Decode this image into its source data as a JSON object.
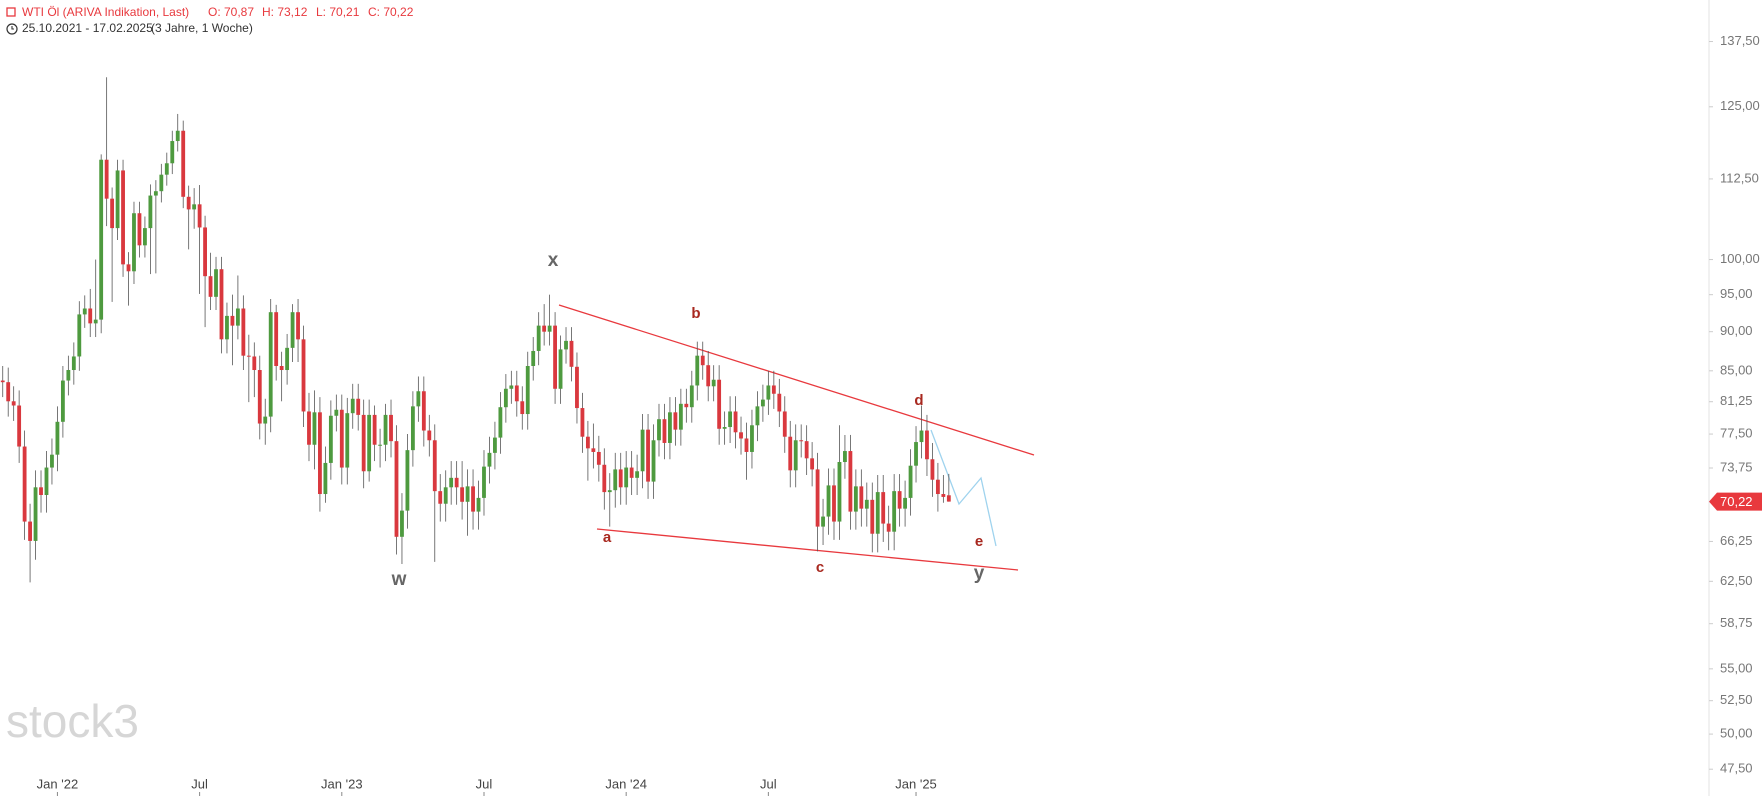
{
  "chart_data": {
    "type": "candlestick",
    "title": "WTI Öl (ARIVA Indikation, Last)",
    "ohlc_labels": [
      "O: 70,87",
      "H: 73,12",
      "L: 70,21",
      "C: 70,22"
    ],
    "subtitle": "25.10.2021 - 17.02.2025",
    "period": "(3 Jahre, 1 Woche)",
    "watermark": "stock3",
    "wave_labels": [
      "x",
      "w",
      "y",
      "a",
      "b",
      "c",
      "d",
      "e"
    ],
    "up_color": "#4e9a3f",
    "down_color": "#d9383e",
    "log_scale": true,
    "ylim": [
      47.1,
      146.1
    ],
    "yticks": [
      {
        "value": 137.5,
        "label": "137,50"
      },
      {
        "value": 125,
        "label": "125,00"
      },
      {
        "value": 112.5,
        "label": "112,50"
      },
      {
        "value": 100,
        "label": "100,00"
      },
      {
        "value": 95,
        "label": "95,00"
      },
      {
        "value": 90,
        "label": "90,00"
      },
      {
        "value": 85,
        "label": "85,00"
      },
      {
        "value": 81.25,
        "label": "81,25"
      },
      {
        "value": 77.5,
        "label": "77,50"
      },
      {
        "value": 73.75,
        "label": "73,75"
      },
      {
        "value": 66.25,
        "label": "66,25"
      },
      {
        "value": 62.5,
        "label": "62,50"
      },
      {
        "value": 58.75,
        "label": "58,75"
      },
      {
        "value": 55,
        "label": "55,00"
      },
      {
        "value": 52.5,
        "label": "52,50"
      },
      {
        "value": 50,
        "label": "50,00"
      },
      {
        "value": 47.5,
        "label": "47,50"
      }
    ],
    "xlim": [
      -0.5,
      312
    ],
    "xticks": [
      {
        "value": 10,
        "label": "Jan '22"
      },
      {
        "value": 36,
        "label": "Jul"
      },
      {
        "value": 62,
        "label": "Jan '23"
      },
      {
        "value": 88,
        "label": "Jul"
      },
      {
        "value": 114,
        "label": "Jan '24"
      },
      {
        "value": 140,
        "label": "Jul"
      },
      {
        "value": 167,
        "label": "Jan '25"
      }
    ],
    "price_tag": {
      "value": 70.22,
      "label": "70,22"
    },
    "open": [
      83.8,
      83.6,
      81.3,
      80.8,
      76.1,
      68.2,
      66.3,
      71.7,
      70.9,
      73.8,
      75.2,
      78.9,
      83.8,
      85.1,
      86.8,
      92.3,
      93.1,
      91.1,
      91.6,
      115.7,
      109.3,
      104.7,
      113.9,
      99.3,
      98.3,
      107.0,
      102.1,
      104.7,
      109.8,
      110.5,
      113.2,
      115.1,
      118.9,
      120.7,
      109.6,
      107.6,
      108.4,
      104.8,
      97.6,
      94.7,
      98.6,
      89.0,
      92.1,
      90.8,
      93.1,
      86.9,
      86.8,
      85.1,
      78.7,
      79.5,
      92.6,
      85.6,
      85.1,
      87.9,
      92.6,
      89.0,
      80.1,
      76.3,
      80.0,
      71.0,
      74.3,
      79.6,
      80.3,
      73.8,
      79.9,
      81.6,
      79.7,
      73.4,
      79.7,
      76.3,
      76.3,
      79.7,
      76.7,
      66.7,
      69.3,
      75.7,
      80.7,
      82.5,
      77.9,
      76.8,
      71.3,
      70.0,
      71.7,
      72.7,
      71.7,
      70.2,
      71.8,
      69.2,
      70.6,
      73.9,
      75.4,
      77.1,
      80.6,
      82.8,
      83.2,
      81.3,
      79.8,
      85.6,
      87.5,
      90.8,
      90.0,
      90.8,
      82.8,
      87.7,
      88.8,
      85.5,
      80.5,
      77.2,
      75.9,
      75.5,
      74.1,
      71.2,
      71.4,
      73.6,
      71.7,
      73.8,
      72.7,
      73.4,
      78.0,
      72.3,
      76.8,
      79.2,
      76.5,
      80.0,
      78.0,
      81.0,
      80.6,
      83.2,
      86.9,
      85.7,
      83.1,
      83.9,
      78.1,
      78.3,
      80.1,
      77.7,
      77.0,
      75.5,
      78.5,
      80.7,
      81.5,
      83.2,
      82.2,
      80.1,
      77.2,
      73.5,
      76.8,
      76.7,
      74.8,
      73.6,
      67.7,
      68.7,
      71.9,
      68.2,
      74.4,
      75.6,
      69.2,
      71.8,
      69.5,
      70.4,
      67.0,
      71.2,
      68.0,
      67.2,
      71.3,
      69.5,
      70.6,
      74.0,
      76.6,
      77.9,
      74.7,
      72.5,
      71.0,
      70.87
    ],
    "close": [
      83.6,
      81.3,
      80.8,
      76.1,
      68.2,
      66.3,
      71.7,
      70.9,
      73.8,
      75.2,
      78.9,
      83.8,
      85.1,
      86.8,
      92.3,
      93.1,
      91.1,
      91.6,
      115.7,
      109.3,
      104.7,
      113.9,
      99.3,
      98.3,
      107.0,
      102.1,
      104.7,
      109.8,
      110.5,
      113.2,
      115.1,
      118.9,
      120.7,
      109.6,
      107.6,
      108.4,
      104.8,
      97.6,
      94.7,
      98.6,
      89.0,
      92.1,
      90.8,
      93.1,
      86.9,
      86.8,
      85.1,
      78.7,
      79.5,
      92.6,
      85.6,
      85.1,
      87.9,
      92.6,
      89.0,
      80.1,
      76.3,
      80.0,
      71.0,
      74.3,
      79.6,
      80.3,
      73.8,
      79.9,
      81.6,
      79.7,
      73.4,
      79.7,
      76.3,
      76.3,
      79.7,
      76.7,
      66.7,
      69.3,
      75.7,
      80.7,
      82.5,
      77.9,
      76.8,
      71.3,
      70.0,
      71.7,
      72.7,
      71.7,
      70.2,
      71.8,
      69.2,
      70.6,
      73.9,
      75.4,
      77.1,
      80.6,
      82.8,
      83.2,
      81.3,
      79.8,
      85.6,
      87.5,
      90.8,
      90.0,
      90.8,
      82.8,
      87.7,
      88.8,
      85.5,
      80.5,
      77.2,
      75.9,
      75.5,
      74.1,
      71.2,
      71.4,
      73.6,
      71.7,
      73.8,
      72.7,
      73.4,
      78.0,
      72.3,
      76.8,
      79.2,
      76.5,
      80.0,
      78.0,
      81.0,
      80.6,
      83.2,
      86.9,
      85.7,
      83.1,
      83.9,
      78.1,
      78.3,
      80.1,
      77.7,
      77.0,
      75.5,
      78.5,
      80.7,
      81.5,
      83.2,
      82.2,
      80.1,
      77.2,
      73.5,
      76.8,
      76.7,
      74.8,
      73.6,
      67.7,
      68.7,
      71.9,
      68.2,
      74.4,
      75.6,
      69.2,
      71.8,
      69.5,
      70.4,
      67.0,
      71.2,
      68.0,
      67.2,
      71.3,
      69.5,
      70.6,
      74.0,
      76.6,
      77.9,
      74.7,
      72.5,
      71.0,
      70.7,
      70.22
    ],
    "high": [
      85.6,
      85.4,
      83.1,
      82.6,
      77.9,
      70.0,
      73.5,
      73.5,
      75.6,
      77.0,
      80.7,
      85.6,
      86.9,
      88.6,
      94.1,
      94.9,
      95.8,
      100.0,
      116.6,
      130.5,
      111.1,
      115.7,
      115.7,
      101.1,
      108.8,
      108.8,
      106.5,
      111.6,
      112.3,
      115.0,
      116.9,
      120.7,
      123.7,
      122.5,
      111.4,
      111.0,
      111.5,
      106.6,
      101.0,
      100.4,
      100.4,
      93.9,
      95.0,
      97.7,
      94.9,
      89.6,
      88.6,
      86.9,
      81.6,
      94.4,
      93.6,
      87.4,
      89.7,
      93.7,
      94.4,
      90.8,
      82.3,
      82.6,
      81.8,
      76.1,
      81.4,
      82.1,
      82.1,
      81.7,
      83.4,
      83.4,
      81.5,
      81.5,
      80.8,
      78.1,
      81.0,
      81.5,
      78.5,
      71.1,
      77.5,
      82.5,
      84.3,
      84.3,
      79.7,
      78.6,
      73.1,
      73.5,
      74.5,
      74.5,
      74.5,
      73.6,
      73.6,
      72.4,
      75.7,
      77.2,
      78.9,
      82.4,
      84.6,
      85.0,
      85.0,
      83.1,
      87.4,
      89.3,
      92.6,
      93.7,
      95.0,
      92.6,
      89.5,
      90.6,
      90.6,
      87.3,
      82.3,
      79.0,
      78.7,
      77.3,
      75.9,
      73.2,
      75.4,
      75.4,
      75.6,
      75.6,
      75.2,
      79.8,
      79.8,
      78.6,
      81.0,
      81.0,
      81.8,
      81.8,
      82.8,
      82.8,
      85.0,
      88.7,
      88.7,
      87.5,
      85.7,
      85.7,
      80.1,
      81.9,
      81.9,
      79.5,
      78.8,
      80.3,
      82.5,
      83.3,
      85.0,
      85.0,
      84.0,
      81.9,
      79.0,
      78.6,
      78.6,
      78.5,
      76.6,
      75.4,
      70.5,
      73.7,
      73.7,
      78.5,
      77.4,
      77.4,
      73.6,
      73.6,
      72.2,
      72.2,
      73.0,
      73.0,
      69.8,
      73.1,
      73.1,
      72.4,
      75.8,
      78.4,
      80.8,
      79.7,
      76.5,
      74.3,
      73.0,
      73.12
    ],
    "low": [
      81.8,
      79.5,
      79.0,
      74.3,
      66.4,
      62.4,
      64.5,
      69.1,
      69.1,
      72.0,
      73.4,
      77.1,
      82.0,
      83.3,
      85.0,
      90.5,
      89.3,
      89.3,
      89.8,
      105.0,
      94.0,
      102.9,
      97.5,
      93.5,
      96.5,
      100.3,
      100.3,
      97.9,
      98.0,
      108.7,
      111.4,
      113.3,
      117.1,
      107.8,
      101.5,
      104.6,
      95.1,
      90.6,
      92.9,
      92.9,
      87.2,
      87.2,
      85.7,
      89.0,
      85.1,
      81.2,
      81.8,
      76.9,
      76.3,
      77.7,
      83.8,
      81.3,
      83.3,
      86.1,
      86.1,
      78.3,
      74.5,
      73.6,
      69.2,
      70.1,
      72.5,
      77.8,
      72.0,
      72.0,
      78.1,
      77.9,
      71.6,
      72.3,
      74.5,
      73.8,
      74.5,
      74.9,
      65.0,
      64.1,
      67.5,
      73.9,
      78.9,
      76.1,
      75.0,
      64.3,
      68.2,
      68.2,
      69.9,
      69.9,
      68.4,
      66.8,
      67.4,
      67.4,
      68.8,
      72.1,
      73.6,
      75.3,
      78.8,
      81.0,
      79.5,
      78.0,
      78.0,
      83.8,
      85.7,
      88.2,
      88.2,
      81.0,
      81.0,
      85.9,
      83.7,
      78.7,
      75.4,
      72.4,
      73.7,
      72.3,
      69.4,
      67.7,
      69.6,
      69.9,
      69.9,
      70.9,
      70.9,
      71.6,
      70.5,
      70.5,
      75.0,
      74.7,
      74.7,
      76.2,
      76.2,
      78.8,
      78.8,
      81.4,
      83.9,
      81.3,
      81.3,
      76.3,
      76.3,
      76.5,
      75.9,
      75.2,
      72.5,
      73.7,
      76.7,
      78.9,
      79.7,
      80.4,
      78.3,
      75.4,
      71.7,
      71.7,
      74.9,
      73.0,
      71.8,
      65.3,
      65.9,
      66.9,
      66.4,
      66.4,
      72.6,
      67.4,
      67.4,
      67.7,
      67.7,
      65.2,
      65.2,
      66.2,
      65.4,
      65.4,
      67.7,
      67.7,
      68.8,
      72.2,
      74.8,
      72.9,
      70.7,
      69.2,
      70.1,
      70.21
    ]
  }
}
